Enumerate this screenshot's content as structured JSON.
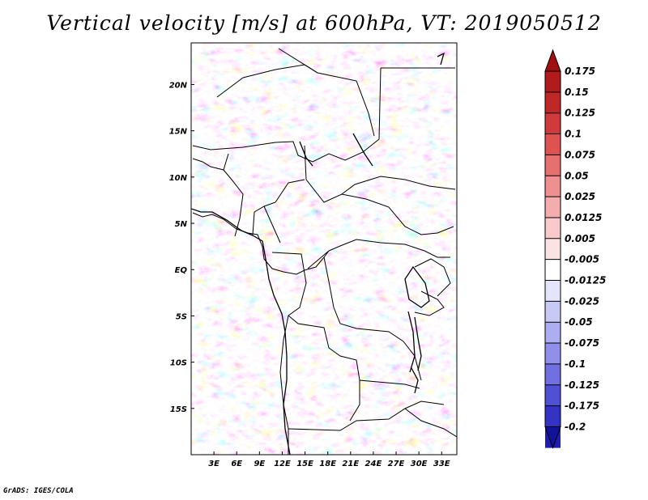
{
  "title": "Vertical velocity [m/s] at 600hPa, VT: 2019050512",
  "credit": "GrADS: IGES/COLA",
  "map": {
    "variable": "Vertical velocity",
    "units": "m/s",
    "level": "600hPa",
    "valid_time": "2019050512",
    "lon_range": [
      0,
      35
    ],
    "lat_range": [
      -20,
      24.5
    ],
    "lon_ticks": [
      {
        "value": 3,
        "label": "3E"
      },
      {
        "value": 6,
        "label": "6E"
      },
      {
        "value": 9,
        "label": "9E"
      },
      {
        "value": 12,
        "label": "12E"
      },
      {
        "value": 15,
        "label": "15E"
      },
      {
        "value": 18,
        "label": "18E"
      },
      {
        "value": 21,
        "label": "21E"
      },
      {
        "value": 24,
        "label": "24E"
      },
      {
        "value": 27,
        "label": "27E"
      },
      {
        "value": 30,
        "label": "30E"
      },
      {
        "value": 33,
        "label": "33E"
      }
    ],
    "lat_ticks": [
      {
        "value": 20,
        "label": "20N"
      },
      {
        "value": 15,
        "label": "15N"
      },
      {
        "value": 10,
        "label": "10N"
      },
      {
        "value": 5,
        "label": "5N"
      },
      {
        "value": 0,
        "label": "EQ"
      },
      {
        "value": -5,
        "label": "5S"
      },
      {
        "value": -10,
        "label": "10S"
      },
      {
        "value": -15,
        "label": "15S"
      }
    ]
  },
  "colorbar": {
    "levels": [
      {
        "label": "0.175",
        "color": "#b11b1b"
      },
      {
        "label": "0.15",
        "color": "#c02828"
      },
      {
        "label": "0.125",
        "color": "#d03a3a"
      },
      {
        "label": "0.1",
        "color": "#de5252"
      },
      {
        "label": "0.075",
        "color": "#e67070"
      },
      {
        "label": "0.05",
        "color": "#ee9090"
      },
      {
        "label": "0.025",
        "color": "#f4adad"
      },
      {
        "label": "0.0125",
        "color": "#f8caca"
      },
      {
        "label": "0.005",
        "color": "#fbe3e3"
      },
      {
        "label": "-0.005",
        "color": "#ffffff"
      },
      {
        "label": "-0.0125",
        "color": "#e4e4fb"
      },
      {
        "label": "-0.025",
        "color": "#c9c9f6"
      },
      {
        "label": "-0.05",
        "color": "#adadf1"
      },
      {
        "label": "-0.075",
        "color": "#9090ea"
      },
      {
        "label": "-0.1",
        "color": "#7070e0"
      },
      {
        "label": "-0.125",
        "color": "#5050d4"
      },
      {
        "label": "-0.175",
        "color": "#3333c4"
      },
      {
        "label": "-0.2",
        "color": "#1e1eae"
      }
    ],
    "top_extend_color": "#a01010",
    "bottom_extend_color": "#12129a"
  }
}
